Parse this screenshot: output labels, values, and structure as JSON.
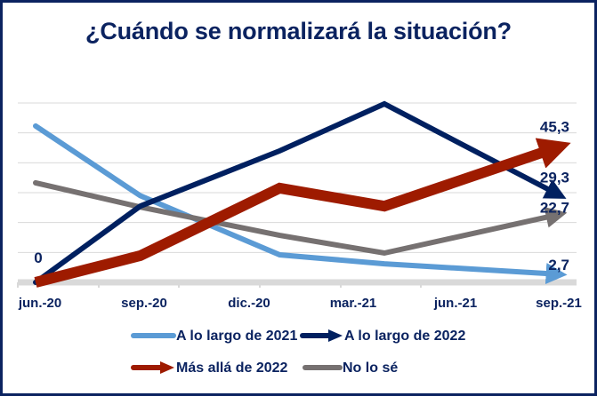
{
  "chart_data": {
    "type": "line",
    "title": "¿Cuándo se normalizará la situación?",
    "xlabel": "",
    "ylabel": "",
    "x_tick_labels": [
      "jun.-20",
      "sep.-20",
      "dic.-20",
      "mar.-21",
      "jun.-21",
      "sep.-21"
    ],
    "x_months": [
      0,
      3,
      7,
      10,
      15
    ],
    "x_range_months": [
      0,
      15
    ],
    "ylim": [
      0,
      60
    ],
    "y_grid_step": 10,
    "grid": true,
    "y_axis_labels_shown": false,
    "legend_position": "bottom",
    "series": [
      {
        "name": "A lo largo de 2021",
        "color": "#5b9bd5",
        "style": "line-end-arrow",
        "values": [
          52.3,
          29.0,
          9.2,
          6.2,
          2.7
        ],
        "end_label": "2,7"
      },
      {
        "name": "A lo largo de 2022",
        "color": "#002060",
        "style": "line-end-arrow",
        "values": [
          0,
          25.5,
          44.0,
          59.7,
          29.3
        ],
        "end_label": "29,3",
        "start_label": "0"
      },
      {
        "name": "Más allá de 2022",
        "color": "#9e1b00",
        "style": "thick-line-end-arrow",
        "values": [
          0,
          8.9,
          31.5,
          25.5,
          45.3
        ],
        "end_label": "45,3"
      },
      {
        "name": "No lo sé",
        "color": "#767171",
        "style": "line-end-arrow",
        "values": [
          33.3,
          25.2,
          15.7,
          9.8,
          22.7
        ],
        "end_label": "22,7"
      }
    ]
  }
}
